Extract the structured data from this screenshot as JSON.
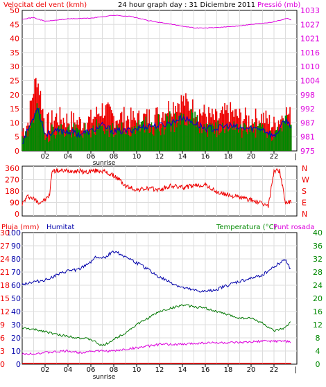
{
  "header": {
    "wind_title": "Velocitat del vent (kmh)",
    "title": "24 hour graph day : 31 Diciembre 2011",
    "pressure_title": "Pressió (mb)"
  },
  "bottom_header": {
    "rain_title": "Pluja (mm)",
    "humidity_title": "Humitat",
    "temp_title": "Temperatura (°C)",
    "dew_title": "Punt rosada"
  },
  "colors": {
    "wind_axis": "#ee0000",
    "pressure": "#dd00dd",
    "gust": "#ee0000",
    "speed": "#008800",
    "avg": "#0000cc",
    "direction": "#ee0000",
    "humidity": "#0000aa",
    "temperature": "#007700",
    "dew": "#dd00dd",
    "rain_axis": "#ee0000",
    "temp_axis": "#008800"
  },
  "chart_data": [
    {
      "type": "line",
      "name": "wind-pressure",
      "x_ticks": [
        "02",
        "04",
        "06",
        "08",
        "10",
        "12",
        "14",
        "16",
        "18",
        "20",
        "22"
      ],
      "sunrise_label": "sunrise",
      "sunrise_hour": 7.15,
      "y_left_ticks": [
        0,
        5,
        10,
        15,
        20,
        25,
        30,
        35,
        40,
        45,
        50
      ],
      "ylim_left": [
        0,
        50
      ],
      "y_right_ticks": [
        975,
        981,
        987,
        992,
        998,
        1004,
        1010,
        1016,
        1021,
        1027,
        1033
      ],
      "ylim_right": [
        975,
        1033
      ],
      "series": {
        "gust_keypoints": [
          [
            0,
            7
          ],
          [
            0.5,
            10
          ],
          [
            1,
            22
          ],
          [
            1.3,
            26
          ],
          [
            1.6,
            20
          ],
          [
            2,
            9
          ],
          [
            3,
            12
          ],
          [
            4,
            11
          ],
          [
            5,
            10
          ],
          [
            6,
            11
          ],
          [
            7,
            15
          ],
          [
            8,
            12
          ],
          [
            9,
            12
          ],
          [
            10,
            11
          ],
          [
            11,
            12
          ],
          [
            12,
            13
          ],
          [
            13,
            16
          ],
          [
            14,
            18
          ],
          [
            15,
            15
          ],
          [
            16,
            13
          ],
          [
            17,
            11
          ],
          [
            18,
            14
          ],
          [
            19,
            12
          ],
          [
            20,
            11
          ],
          [
            21,
            12
          ],
          [
            22,
            9
          ],
          [
            23,
            14
          ],
          [
            23.5,
            12
          ]
        ],
        "avg_keypoints": [
          [
            0,
            3
          ],
          [
            1,
            12
          ],
          [
            1.3,
            16
          ],
          [
            2,
            6
          ],
          [
            3,
            7
          ],
          [
            4,
            7
          ],
          [
            5,
            6
          ],
          [
            6,
            7
          ],
          [
            7,
            9
          ],
          [
            8,
            7
          ],
          [
            9,
            7
          ],
          [
            10,
            8
          ],
          [
            11,
            9
          ],
          [
            12,
            9
          ],
          [
            13,
            10
          ],
          [
            14,
            12
          ],
          [
            15,
            10
          ],
          [
            16,
            8
          ],
          [
            17,
            8
          ],
          [
            18,
            9
          ],
          [
            19,
            8
          ],
          [
            20,
            8
          ],
          [
            21,
            8
          ],
          [
            22,
            5
          ],
          [
            23,
            11
          ],
          [
            23.5,
            9
          ]
        ],
        "pressure_keypoints": [
          [
            0,
            1029.5
          ],
          [
            1,
            1030
          ],
          [
            2,
            1028.5
          ],
          [
            4,
            1029.5
          ],
          [
            6,
            1029.8
          ],
          [
            8,
            1031
          ],
          [
            9.5,
            1030.5
          ],
          [
            11,
            1028.8
          ],
          [
            13,
            1027.3
          ],
          [
            15,
            1025.8
          ],
          [
            16,
            1025.7
          ],
          [
            18,
            1026.2
          ],
          [
            20,
            1027.2
          ],
          [
            22,
            1028.3
          ],
          [
            23.2,
            1029.8
          ],
          [
            23.5,
            1029
          ]
        ]
      }
    },
    {
      "type": "line",
      "name": "wind-direction",
      "y_ticks": [
        0,
        90,
        180,
        270,
        360
      ],
      "ylim": [
        0,
        360
      ],
      "compass": [
        "N",
        "W",
        "S",
        "E",
        "N"
      ],
      "series": {
        "direction_keypoints": [
          [
            0,
            80
          ],
          [
            0.5,
            140
          ],
          [
            1,
            120
          ],
          [
            1.5,
            90
          ],
          [
            2,
            110
          ],
          [
            2.4,
            150
          ],
          [
            2.6,
            340
          ],
          [
            3,
            340
          ],
          [
            4,
            340
          ],
          [
            5,
            340
          ],
          [
            5.4,
            330
          ],
          [
            5.8,
            330
          ],
          [
            6,
            340
          ],
          [
            7,
            340
          ],
          [
            7.5,
            320
          ],
          [
            8,
            300
          ],
          [
            8.5,
            270
          ],
          [
            9,
            220
          ],
          [
            10,
            190
          ],
          [
            11,
            200
          ],
          [
            12,
            190
          ],
          [
            13,
            220
          ],
          [
            14,
            210
          ],
          [
            15,
            220
          ],
          [
            16,
            230
          ],
          [
            17,
            170
          ],
          [
            18,
            150
          ],
          [
            19,
            130
          ],
          [
            20,
            110
          ],
          [
            21,
            80
          ],
          [
            21.5,
            60
          ],
          [
            22,
            340
          ],
          [
            22.5,
            340
          ],
          [
            23,
            90
          ],
          [
            23.5,
            90
          ]
        ]
      }
    },
    {
      "type": "line",
      "name": "humidity-temperature",
      "x_ticks": [
        "02",
        "04",
        "06",
        "08",
        "10",
        "12",
        "14",
        "16",
        "18",
        "20",
        "22"
      ],
      "sunrise_label": "sunrise",
      "y_rain_ticks": [
        0,
        3,
        6,
        9,
        12,
        15,
        18,
        21,
        24,
        27,
        30
      ],
      "ylim_rain": [
        0,
        30
      ],
      "y_humidity_ticks": [
        0,
        10,
        20,
        30,
        40,
        50,
        60,
        70,
        80,
        90,
        100
      ],
      "ylim_humidity": [
        0,
        100
      ],
      "y_temp_ticks": [
        0,
        4,
        8,
        12,
        16,
        20,
        24,
        28,
        32,
        36,
        40
      ],
      "ylim_temp": [
        0,
        40
      ],
      "series": {
        "humidity_keypoints": [
          [
            0,
            61
          ],
          [
            2,
            64
          ],
          [
            4,
            71
          ],
          [
            5,
            72
          ],
          [
            6,
            78
          ],
          [
            6.5,
            82
          ],
          [
            7,
            80
          ],
          [
            7.5,
            83
          ],
          [
            8,
            86
          ],
          [
            9,
            82
          ],
          [
            10,
            77
          ],
          [
            11,
            72
          ],
          [
            12,
            66
          ],
          [
            13,
            62
          ],
          [
            14,
            58
          ],
          [
            15,
            56
          ],
          [
            16,
            55
          ],
          [
            17,
            57
          ],
          [
            18,
            60
          ],
          [
            19,
            63
          ],
          [
            20,
            65
          ],
          [
            21,
            68
          ],
          [
            22,
            74
          ],
          [
            23,
            80
          ],
          [
            23.5,
            71
          ]
        ],
        "temperature_keypoints": [
          [
            0,
            11
          ],
          [
            2,
            10
          ],
          [
            3,
            9
          ],
          [
            4,
            8.5
          ],
          [
            5,
            8
          ],
          [
            6,
            7.5
          ],
          [
            7,
            5.5
          ],
          [
            8,
            7.5
          ],
          [
            9,
            9.5
          ],
          [
            10,
            12
          ],
          [
            11,
            14
          ],
          [
            12,
            16
          ],
          [
            13,
            17
          ],
          [
            14,
            18
          ],
          [
            15,
            17.5
          ],
          [
            16,
            17
          ],
          [
            17,
            16
          ],
          [
            18,
            15
          ],
          [
            19,
            14
          ],
          [
            20,
            14
          ],
          [
            21,
            12.5
          ],
          [
            22,
            10
          ],
          [
            23,
            11
          ],
          [
            23.5,
            13
          ]
        ],
        "dew_keypoints": [
          [
            0,
            3
          ],
          [
            2,
            3.5
          ],
          [
            4,
            4
          ],
          [
            5,
            3.5
          ],
          [
            6,
            4
          ],
          [
            7,
            4
          ],
          [
            8,
            4
          ],
          [
            9,
            4.5
          ],
          [
            10,
            5
          ],
          [
            11,
            5.5
          ],
          [
            12,
            6
          ],
          [
            13,
            6
          ],
          [
            14,
            6
          ],
          [
            15,
            6.3
          ],
          [
            16,
            6.5
          ],
          [
            17,
            6.5
          ],
          [
            18,
            6.5
          ],
          [
            19,
            6.5
          ],
          [
            20,
            6.7
          ],
          [
            21,
            7
          ],
          [
            22,
            7
          ],
          [
            23,
            7
          ],
          [
            23.5,
            6.5
          ]
        ],
        "rain_keypoints": [
          [
            0,
            0
          ],
          [
            23.5,
            0
          ]
        ]
      }
    }
  ]
}
